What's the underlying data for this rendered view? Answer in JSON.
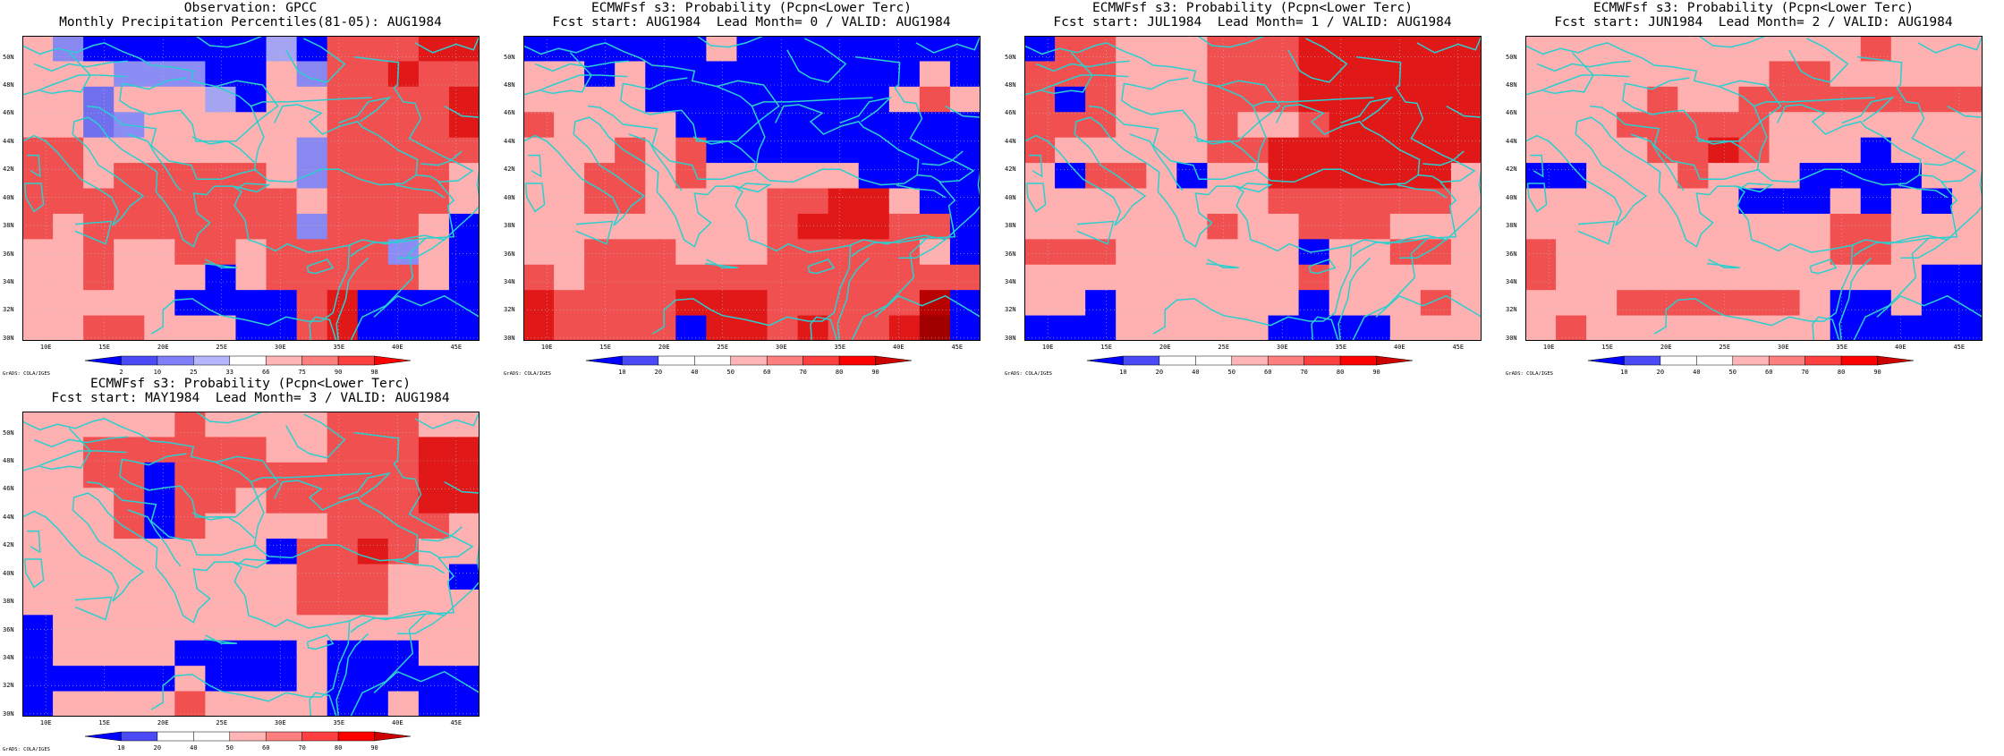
{
  "panels": [
    {
      "title1": "Observation: GPCC",
      "title2": "Monthly Precipitation Percentiles(81-05): AUG1984",
      "cbar_labels": [
        "2",
        "10",
        "25",
        "33",
        "66",
        "75",
        "90",
        "98"
      ],
      "cbar_colors": [
        "#0000ff",
        "#4a4af6",
        "#7f7ff9",
        "#b5b5fc",
        "#ffffff",
        "#ffb5b5",
        "#ff7f7f",
        "#ff4040",
        "#ff0000"
      ],
      "grid": [
        "HGLLLLLLKLRRRSS",
        "HHHJJJLLHGRRSRR",
        "HHIHHHKLHHRRRRS",
        "HHIJHHHHHHRRRRS",
        "RRHHHHHHHGRRRRR",
        "RRHRRRRRHGRRRRH",
        "RRRRRRRRRHRRRRH",
        "RHRRRRRRRGRRRHL",
        "HHRHHRRHRRRRJHL",
        "HHRHHHLHRRRRRHL",
        "HHHHHLLLLRSLLLL",
        "HHRRHHHLLRSLLLL"
      ]
    },
    {
      "title1": "ECMWFsf s3: Probability (Pcpn<Lower Terc)",
      "title2": "Fcst start: AUG1984  Lead Month= 0 / VALID: AUG1984",
      "cbar_labels": [
        "10",
        "20",
        "40",
        "50",
        "60",
        "70",
        "80",
        "90"
      ],
      "cbar_colors": [
        "#0000ff",
        "#4a4af6",
        "#ffffff",
        "#ffffff",
        "#ffb5b5",
        "#ff7f7f",
        "#ff4040",
        "#ff0000",
        "#cc0000"
      ],
      "grid": [
        "LLLLLLHLLLLLLLL",
        "HHLHLLLLLLLLLHL",
        "HHHHLLLLLLLLHRH",
        "RHHHHLLLLLLLLLL",
        "HHHRHRLLLLLLLLL",
        "HHRRHRHHHHHLLLL",
        "HHRRHHHHRRSSHLL",
        "HHHHHHHHRSSSRRL",
        "HHRRRHHHRRRRRHL",
        "RHRRRRRRRRRRRRR",
        "SRRRRSSSRRRRRTL",
        "SRRRRLSSRSRRSUL"
      ]
    },
    {
      "title1": "ECMWFsf s3: Probability (Pcpn<Lower Terc)",
      "title2": "Fcst start: JUL1984  Lead Month= 1 / VALID: AUG1984",
      "cbar_labels": [
        "10",
        "20",
        "40",
        "50",
        "60",
        "70",
        "80",
        "90"
      ],
      "cbar_colors": [
        "#0000ff",
        "#4a4af6",
        "#ffffff",
        "#ffffff",
        "#ffb5b5",
        "#ff7f7f",
        "#ff4040",
        "#ff0000",
        "#cc0000"
      ],
      "grid": [
        "LRRHHHRRRSSSSSS",
        "RRRHHHRRRSSSSSS",
        "RLRHHHRRRSSSSSS",
        "RRRHHHRHHRSSSSS",
        "RHHHHHRRSSSSSSS",
        "HLRRHLHHSSSSSSH",
        "HHHHHHHHRRRRRRH",
        "HHHHHHRHHRRRHHH",
        "RRRHHHHHHLHHRRH",
        "HHHHHHHHHRHHHHH",
        "HHLHHHHHHLHHHRH",
        "LLLHHHHHLLLLHHH"
      ]
    },
    {
      "title1": "ECMWFsf s3: Probability (Pcpn<Lower Terc)",
      "title2": "Fcst start: JUN1984  Lead Month= 2 / VALID: AUG1984",
      "cbar_labels": [
        "10",
        "20",
        "40",
        "50",
        "60",
        "70",
        "80",
        "90"
      ],
      "cbar_colors": [
        "#0000ff",
        "#4a4af6",
        "#ffffff",
        "#ffffff",
        "#ffb5b5",
        "#ff7f7f",
        "#ff4040",
        "#ff0000",
        "#cc0000"
      ],
      "grid": [
        "HHHHHHHHHHHRHHH",
        "HHHHHHHHRRHHHHH",
        "HHHHRHHRRRRRRRR",
        "HHHRRRRRHHHHHHH",
        "HHHHRRSRHHHLHHH",
        "LLHHHRHHHLLLLHH",
        "HHHHHHHLLLHLHLH",
        "HHHHHHHHHHRRHHH",
        "RHHHHHHHHHRRHHH",
        "RHHHHHHHHHHHHLL",
        "HHHRRRRRRHLLHLL",
        "HRHHHHHHHHLLLLL"
      ]
    },
    {
      "title1": "ECMWFsf s3: Probability (Pcpn<Lower Terc)",
      "title2": "Fcst start: MAY1984  Lead Month= 3 / VALID: AUG1984",
      "cbar_labels": [
        "10",
        "20",
        "40",
        "50",
        "60",
        "70",
        "80",
        "90"
      ],
      "cbar_colors": [
        "#0000ff",
        "#4a4af6",
        "#ffffff",
        "#ffffff",
        "#ffb5b5",
        "#ff7f7f",
        "#ff4040",
        "#ff0000",
        "#cc0000"
      ],
      "grid": [
        "HHHHHRHHHHRRRHH",
        "HHRRRRRRHHRRRSS",
        "HHRRLRRRRRRRRSS",
        "HHHRLRRHRRRRRSS",
        "HHHRLRHHHHRRRRH",
        "HHHHHHHHLRRSRHH",
        "HHHHHHHHHRRRHHL",
        "HHHHHHHHHRRRHHH",
        "LHHHHHHHHHHHHHH",
        "LHHHHLLLLHLLLHH",
        "LLLLLHLLLHLLLLL",
        "LHHHHRHHHHLLHLL"
      ]
    }
  ],
  "lat_labels": [
    "50N",
    "48N",
    "46N",
    "44N",
    "42N",
    "40N",
    "38N",
    "36N",
    "34N",
    "32N",
    "30N"
  ],
  "lon_labels": [
    "10E",
    "15E",
    "20E",
    "25E",
    "30E",
    "35E",
    "40E",
    "45E"
  ],
  "cell_colors": {
    "L": "#0000ff",
    "J": "#8c8cf5",
    "K": "#a4a4f2",
    "I": "#7070ee",
    "G": "#8888f0",
    "H": "#ffb0b0",
    "R": "#f05050",
    "S": "#e01818",
    "T": "#b80000",
    "U": "#a00000",
    "W": "#ffffff"
  },
  "coast_color": "#2ad0d0",
  "grads_label": "GrADS: COLA/IGES"
}
